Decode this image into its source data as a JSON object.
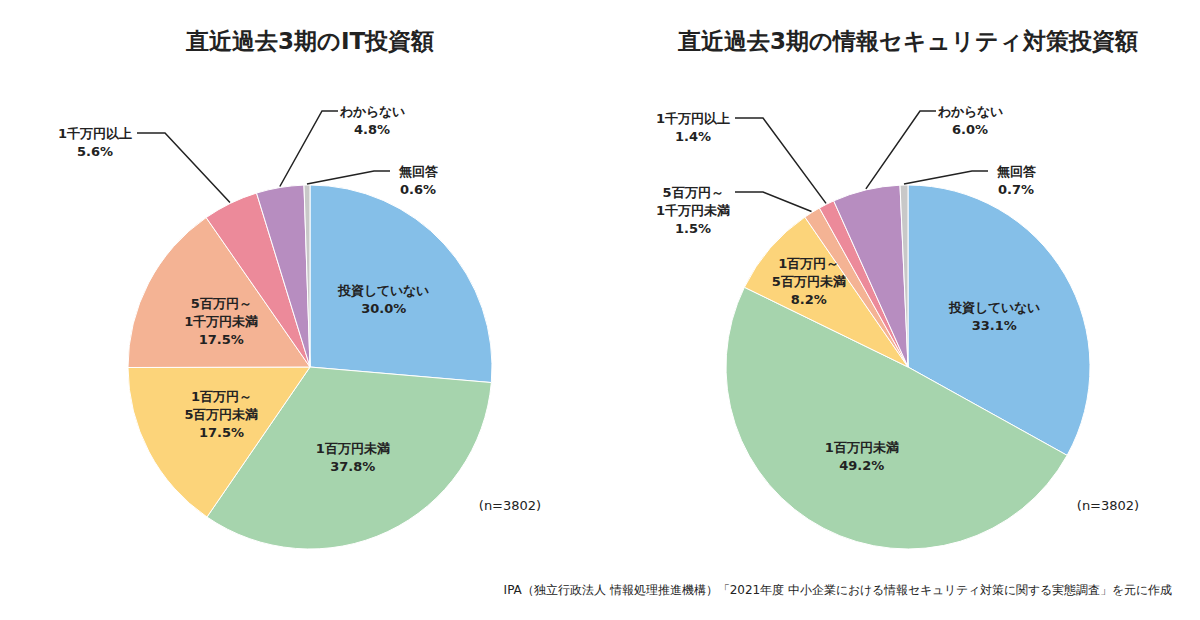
{
  "chart_data": [
    {
      "type": "pie",
      "title": "直近過去3期のIT投資額",
      "categories": [
        "投資していない",
        "1百万円未満",
        "1百万円～5百万円未満",
        "5百万円～1千万円未満",
        "1千万円以上",
        "わからない",
        "無回答"
      ],
      "values": [
        30.0,
        37.8,
        17.5,
        17.5,
        5.6,
        4.8,
        0.6
      ],
      "value_labels": [
        "30.0%",
        "37.8%",
        "17.5%",
        "17.5%",
        "5.6%",
        "4.8%",
        "0.6%"
      ],
      "colors": [
        "#85bfe8",
        "#a6d4ad",
        "#fcd47a",
        "#f4b394",
        "#ec8a9a",
        "#b78dc0",
        "#c8c8c8"
      ],
      "data_labels": true,
      "annotation": "(n=3802)"
    },
    {
      "type": "pie",
      "title": "直近過去3期の情報セキュリティ対策投資額",
      "categories": [
        "投資していない",
        "1百万円未満",
        "1百万円～5百万円未満",
        "5百万円～1千万円未満",
        "1千万円以上",
        "わからない",
        "無回答"
      ],
      "values": [
        33.1,
        49.2,
        8.2,
        1.5,
        1.4,
        6.0,
        0.7
      ],
      "value_labels": [
        "33.1%",
        "49.2%",
        "8.2%",
        "1.5%",
        "1.4%",
        "6.0%",
        "0.7%"
      ],
      "colors": [
        "#85bfe8",
        "#a6d4ad",
        "#fcd47a",
        "#f4b394",
        "#ec8a9a",
        "#b78dc0",
        "#c8c8c8"
      ],
      "data_labels": true,
      "annotation": "(n=3802)"
    }
  ],
  "source": "IPA（独立行政法人 情報処理推進機構）「2021年度 中小企業における情報セキュリティ対策に関する実態調査」を元に作成"
}
